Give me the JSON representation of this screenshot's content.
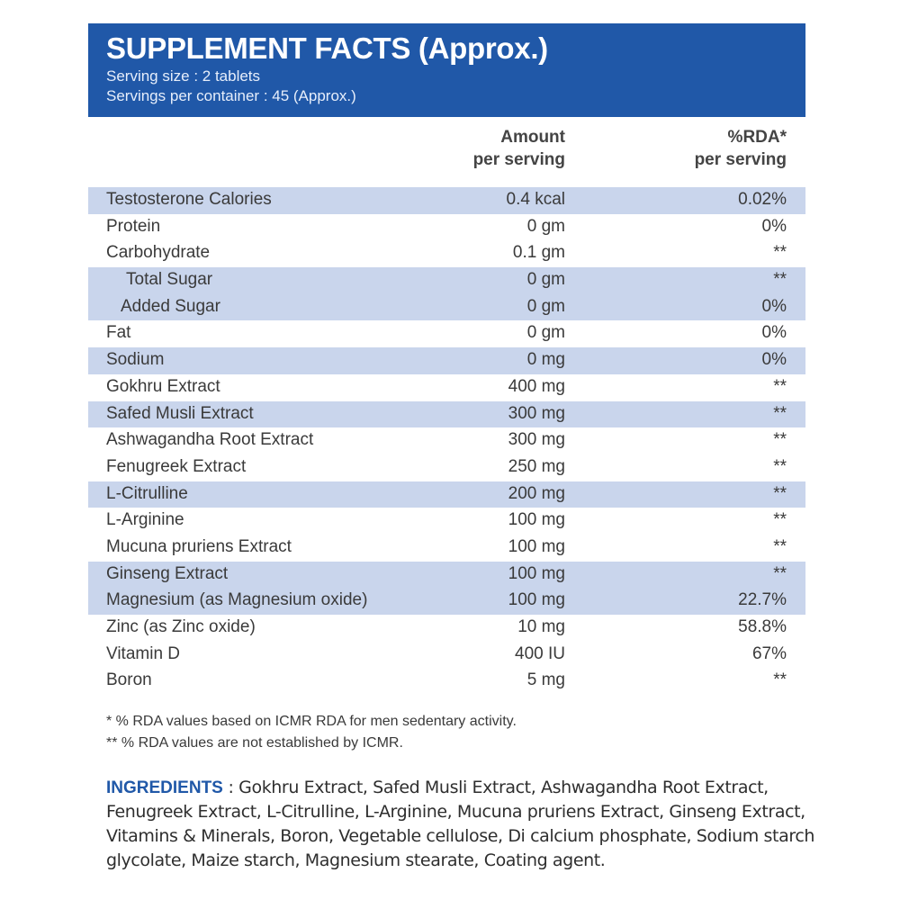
{
  "header": {
    "title": "SUPPLEMENT FACTS (Approx.)",
    "serving_size": "Serving size : 2 tablets",
    "servings_per_container": "Servings per container : 45 (Approx.)"
  },
  "columns": {
    "amount_line1": "Amount",
    "amount_line2": "per serving",
    "rda_line1": "%RDA*",
    "rda_line2": "per serving"
  },
  "rows": [
    {
      "name": "Testosterone Calories",
      "amount": "0.4 kcal",
      "rda": "0.02%",
      "shaded": true,
      "indent": 0
    },
    {
      "name": "Protein",
      "amount": "0 gm",
      "rda": "0%",
      "shaded": false,
      "indent": 0
    },
    {
      "name": "Carbohydrate",
      "amount": "0.1 gm",
      "rda": "**",
      "shaded": false,
      "indent": 0
    },
    {
      "name": "Total Sugar",
      "amount": "0 gm",
      "rda": "**",
      "shaded": true,
      "indent": 1
    },
    {
      "name": "Added Sugar",
      "amount": "0 gm",
      "rda": "0%",
      "shaded": true,
      "indent": 2
    },
    {
      "name": "Fat",
      "amount": "0 gm",
      "rda": "0%",
      "shaded": false,
      "indent": 0
    },
    {
      "name": "Sodium",
      "amount": "0 mg",
      "rda": "0%",
      "shaded": true,
      "indent": 0
    },
    {
      "name": "Gokhru Extract",
      "amount": "400 mg",
      "rda": "**",
      "shaded": false,
      "indent": 0
    },
    {
      "name": "Safed Musli Extract",
      "amount": "300 mg",
      "rda": "**",
      "shaded": true,
      "indent": 0
    },
    {
      "name": "Ashwagandha Root Extract",
      "amount": "300 mg",
      "rda": "**",
      "shaded": false,
      "indent": 0
    },
    {
      "name": "Fenugreek Extract",
      "amount": "250 mg",
      "rda": "**",
      "shaded": false,
      "indent": 0
    },
    {
      "name": "L-Citrulline",
      "amount": "200 mg",
      "rda": "**",
      "shaded": true,
      "indent": 0
    },
    {
      "name": "L-Arginine",
      "amount": "100 mg",
      "rda": "**",
      "shaded": false,
      "indent": 0
    },
    {
      "name": "Mucuna pruriens Extract",
      "amount": "100 mg",
      "rda": "**",
      "shaded": false,
      "indent": 0
    },
    {
      "name": "Ginseng Extract",
      "amount": "100 mg",
      "rda": "**",
      "shaded": true,
      "indent": 0
    },
    {
      "name": "Magnesium (as Magnesium oxide)",
      "amount": "100 mg",
      "rda": "22.7%",
      "shaded": true,
      "indent": 0
    },
    {
      "name": "Zinc (as Zinc oxide)",
      "amount": "10 mg",
      "rda": "58.8%",
      "shaded": false,
      "indent": 0
    },
    {
      "name": "Vitamin D",
      "amount": "400 IU",
      "rda": "67%",
      "shaded": false,
      "indent": 0
    },
    {
      "name": "Boron",
      "amount": "5 mg",
      "rda": "**",
      "shaded": false,
      "indent": 0
    }
  ],
  "notes": {
    "note1": "* % RDA values based on ICMR RDA for men sedentary activity.",
    "note2": "** % RDA values are not established by ICMR."
  },
  "ingredients": {
    "label": "INGREDIENTS",
    "text": " : Gokhru Extract, Safed Musli Extract, Ashwagandha Root Extract, Fenugreek Extract, L-Citrulline, L-Arginine, Mucuna pruriens Extract, Ginseng Extract, Vitamins & Minerals, Boron, Vegetable cellulose, Di calcium phosphate, Sodium starch glycolate, Maize starch, Magnesium stearate, Coating agent."
  },
  "colors": {
    "header_bg": "#2058a8",
    "row_shade": "#c9d5ec",
    "ingredients_label": "#2058a8"
  }
}
